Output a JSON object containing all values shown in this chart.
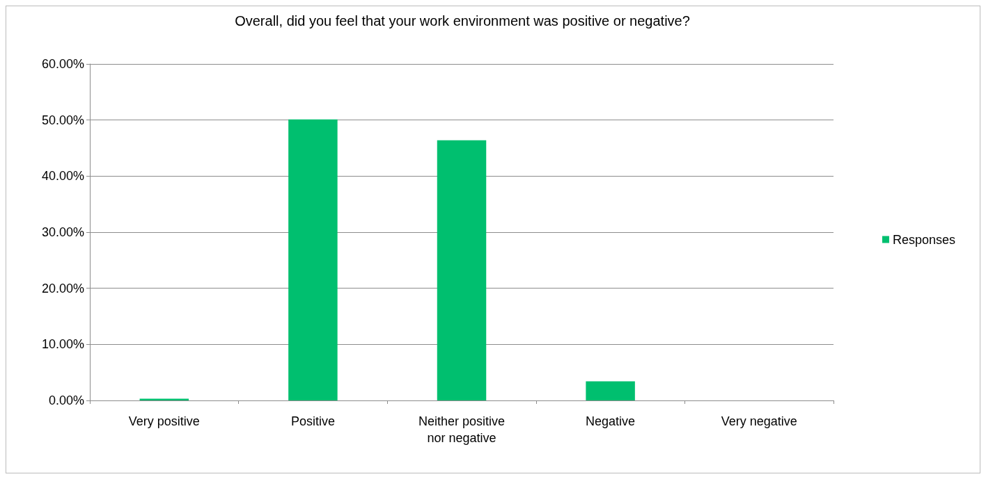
{
  "chart_data": {
    "type": "bar",
    "title": "Overall, did you feel that your work environment was positive or negative?",
    "categories": [
      "Very positive",
      "Positive",
      "Neither positive\nnor negative",
      "Negative",
      "Very negative"
    ],
    "series": [
      {
        "name": "Responses",
        "color": "#00bf6f",
        "values": [
          0.3,
          50.1,
          46.4,
          3.4,
          0
        ]
      }
    ],
    "ylim": [
      0,
      60
    ],
    "yticks": [
      {
        "value": 0,
        "label": "0.00%"
      },
      {
        "value": 10,
        "label": "10.00%"
      },
      {
        "value": 20,
        "label": "20.00%"
      },
      {
        "value": 30,
        "label": "30.00%"
      },
      {
        "value": 40,
        "label": "40.00%"
      },
      {
        "value": 50,
        "label": "50.00%"
      },
      {
        "value": 60,
        "label": "60.00%"
      }
    ],
    "grid": "y",
    "legend": "right"
  }
}
